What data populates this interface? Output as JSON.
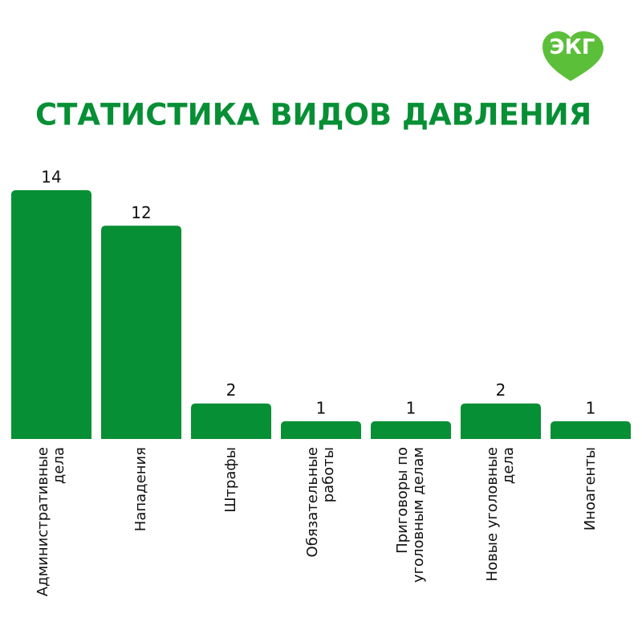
{
  "logo_text": "ЭКГ",
  "chart_data": {
    "type": "bar",
    "title": "СТАТИСТИКА ВИДОВ ДАВЛЕНИЯ",
    "categories": [
      "Административные\nдела",
      "Нападения",
      "Штрафы",
      "Обязательные\nработы",
      "Приговоры по\nуголовным делам",
      "Новые уголовные\nдела",
      "Иноагенты"
    ],
    "values": [
      14,
      12,
      2,
      1,
      1,
      2,
      1
    ],
    "color": "#078f35",
    "ylim": [
      0,
      14
    ]
  }
}
